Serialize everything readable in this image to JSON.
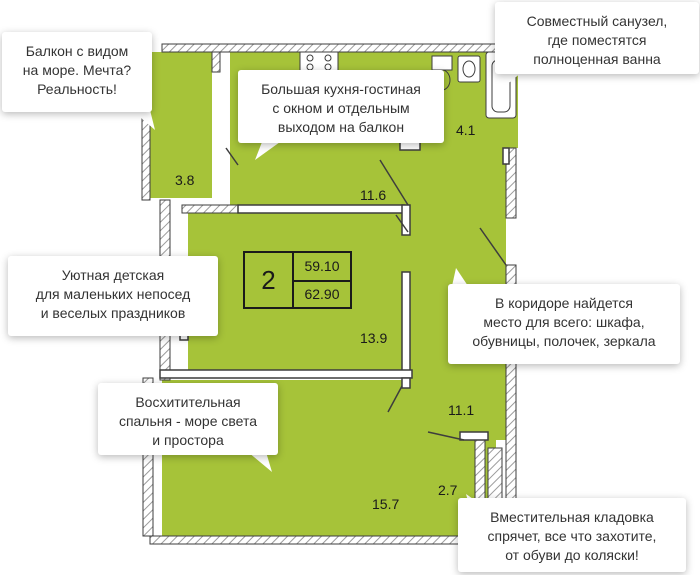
{
  "apartment": {
    "rooms": "2",
    "living_area": "59.10",
    "total_area": "62.90"
  },
  "areas": {
    "balcony": "3.8",
    "bathroom": "4.1",
    "kitchen": "11.6",
    "nursery": "13.9",
    "corridor": "11.1",
    "storage": "2.7",
    "bedroom": "15.7"
  },
  "callouts": {
    "balcony": "Балкон с видом\nна море. Мечта?\nРеальность!",
    "kitchen": "Большая кухня-гостиная\nс окном и отдельным\nвыходом на балкон",
    "bathroom": "Совместный санузел,\nгде поместятся\nполноценная ванна",
    "nursery": "Уютная детская\nдля маленьких непосед\nи веселых праздников",
    "corridor": "В коридоре найдется\nместо для всего: шкафа,\nобувницы, полочек, зеркала",
    "bedroom": "Восхитительная\nспальня - море света\nи простора",
    "storage": "Вместительная кладовка\nспрячет, все что захотите,\nот обуви до коляски!"
  },
  "colors": {
    "floor": "#a6c339",
    "wall": "#3d3d3d",
    "hatch": "#9a9a9a"
  }
}
